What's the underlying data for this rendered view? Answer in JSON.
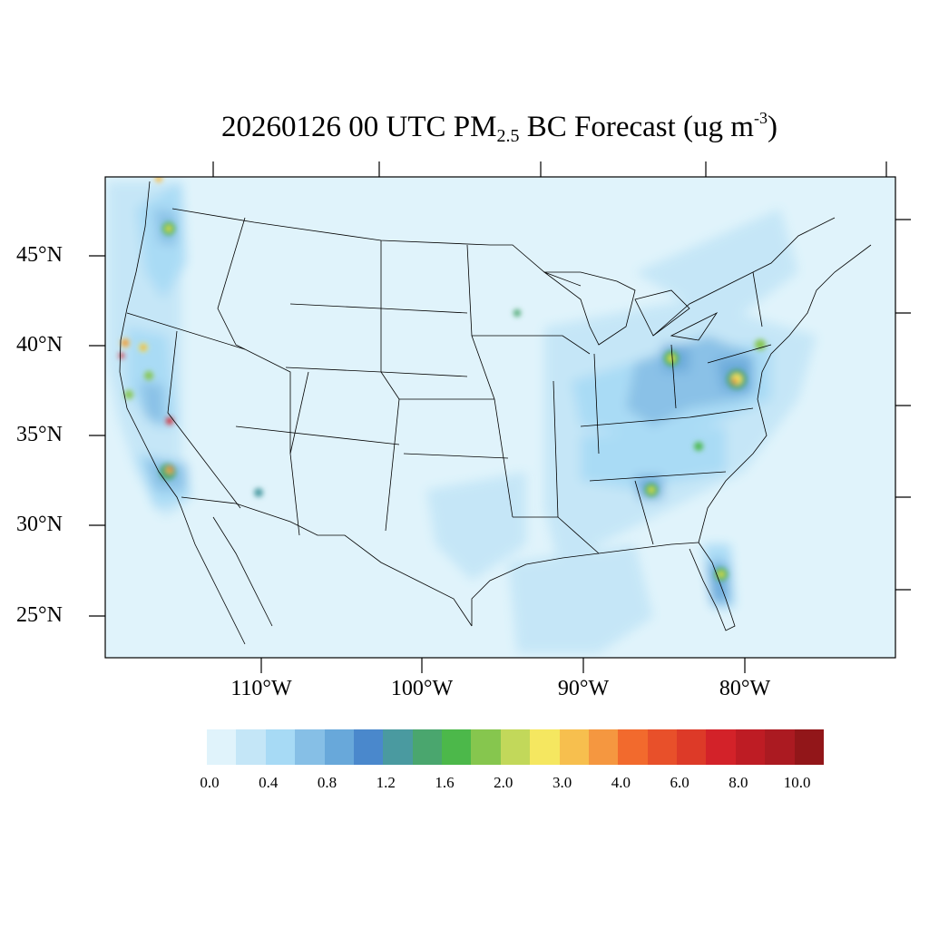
{
  "title": {
    "prefix": "20260126 00 UTC PM",
    "subscript": "2.5",
    "middle": " BC Forecast (ug m",
    "superscript": "-3",
    "suffix": ")"
  },
  "lat_labels": [
    "45°N",
    "40°N",
    "35°N",
    "30°N",
    "25°N"
  ],
  "lon_labels": [
    "110°W",
    "100°W",
    "90°W",
    "80°W"
  ],
  "colorbar": {
    "colors": [
      "#e0f3fb",
      "#c4e6f7",
      "#a7daf5",
      "#86bfe6",
      "#68a8da",
      "#4a88cc",
      "#4a9aa0",
      "#4aa66e",
      "#4cb84a",
      "#86c64e",
      "#c2d85a",
      "#f5e760",
      "#f7bf4e",
      "#f59740",
      "#f26a2d",
      "#e8502a",
      "#dd3a28",
      "#d32229",
      "#be1c24",
      "#ab1a21",
      "#921619"
    ],
    "labels": [
      "0.0",
      "0.4",
      "0.8",
      "1.2",
      "1.6",
      "2.0",
      "3.0",
      "4.0",
      "6.0",
      "8.0",
      "10.0"
    ]
  },
  "colors": {
    "background_field": "#e0f3fb",
    "border": "#000000"
  }
}
